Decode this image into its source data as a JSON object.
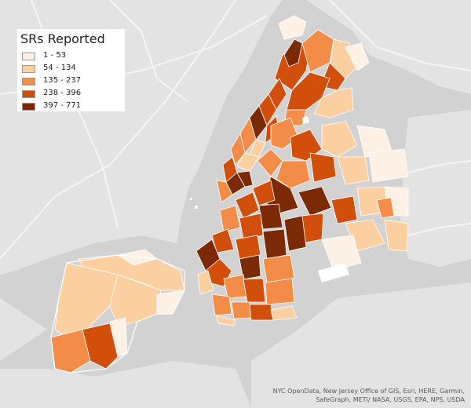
{
  "map": {
    "legend": {
      "title": "SRs Reported",
      "classes": [
        {
          "label": "1 - 53",
          "color": "#fdf0e4"
        },
        {
          "label": "54 - 134",
          "color": "#fbcf9f"
        },
        {
          "label": "135 - 237",
          "color": "#f28c48"
        },
        {
          "label": "238 - 396",
          "color": "#d24e0b"
        },
        {
          "label": "397 - 771",
          "color": "#7c2a05"
        }
      ]
    },
    "attribution": "NYC OpenData, New Jersey Office of GIS, Esri, HERE, Garmin, SafeGraph, METI/ NASA, USGS, EPA, NPS, USDA",
    "colors": {
      "land": "#e3e3e3",
      "water": "#d2d2d2",
      "roads": "#f4f4f4",
      "boundary": "#ffffff"
    }
  }
}
